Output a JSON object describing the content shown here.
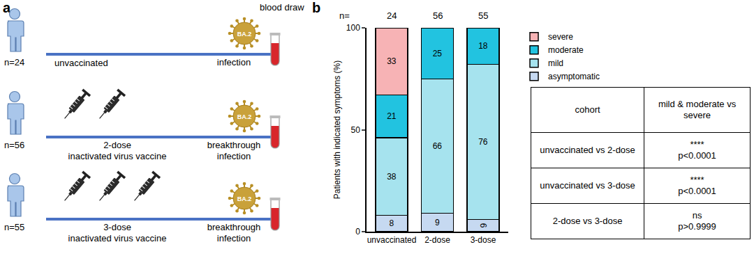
{
  "panel_a": {
    "label": "a",
    "blood_draw": "blood draw",
    "cohorts": [
      {
        "n_label": "n=24",
        "doses": 0,
        "line_labels": [
          "unvaccinated"
        ],
        "event_labels": [
          "infection"
        ],
        "variant": "BA.2"
      },
      {
        "n_label": "n=56",
        "doses": 2,
        "line_labels": [
          "2-dose",
          "inactivated virus vaccine"
        ],
        "event_labels": [
          "breakthrough",
          "infection"
        ],
        "variant": "BA.2"
      },
      {
        "n_label": "n=55",
        "doses": 3,
        "line_labels": [
          "3-dose",
          "inactivated virus vaccine"
        ],
        "event_labels": [
          "breakthrough",
          "infection"
        ],
        "variant": "BA.2"
      }
    ]
  },
  "panel_b_label": "b",
  "chart_data": {
    "type": "bar",
    "stacked": true,
    "data_labels": true,
    "grid": false,
    "legend": "upper right",
    "y_label": "Patients with indicated symptoms (%)",
    "categories": [
      "unvaccinated",
      "2-dose",
      "3-dose"
    ],
    "sample_sizes": {
      "label": "n=",
      "values": [
        24,
        56,
        55
      ]
    },
    "series": [
      {
        "name": "asymptomatic",
        "color": "#c6d9f1",
        "values": [
          8,
          9,
          6
        ]
      },
      {
        "name": "mild",
        "color": "#a6e3ee",
        "values": [
          38,
          66,
          76
        ]
      },
      {
        "name": "moderate",
        "color": "#22c3e0",
        "values": [
          21,
          25,
          18
        ]
      },
      {
        "name": "severe",
        "color": "#f7b3b5",
        "values": [
          33,
          null,
          null
        ]
      }
    ],
    "ylim": [
      0,
      100
    ],
    "yticks": [
      0,
      50,
      100
    ]
  },
  "table": {
    "header": [
      "cohort",
      "mild & moderate vs severe"
    ],
    "rows": [
      [
        "unvaccinated vs 2-dose",
        "****",
        "p<0.0001"
      ],
      [
        "unvaccinated vs 3-dose",
        "****",
        "p<0.0001"
      ],
      [
        "2-dose vs 3-dose",
        "ns",
        "p>0.9999"
      ]
    ]
  }
}
